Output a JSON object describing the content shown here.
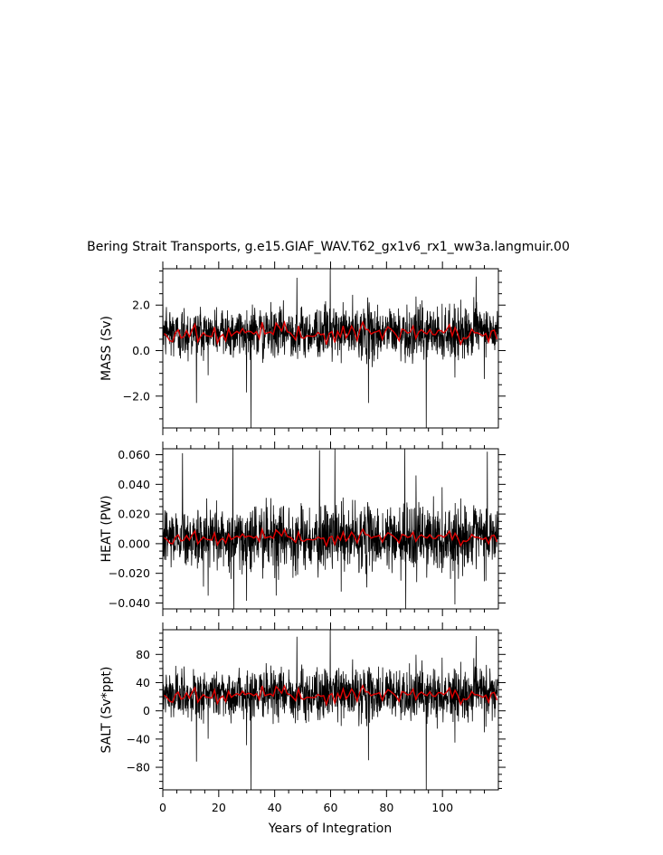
{
  "chart_data": {
    "title": "Bering Strait Transports, g.e15.GIAF_WAV.T62_gx1v6_rx1_ww3a.langmuir.00",
    "xlabel": "Years of Integration",
    "xlim": [
      0,
      120
    ],
    "xticks": [
      0,
      20,
      40,
      60,
      80,
      100
    ],
    "panels": [
      {
        "id": "mass",
        "type": "line",
        "ylabel": "MASS (Sv)",
        "ylim": [
          -3.4,
          3.6
        ],
        "yticks": [
          -2.0,
          0.0,
          2.0
        ],
        "ytick_labels": [
          "−2.0",
          "0.0",
          "2.0"
        ],
        "monthly_mean": 0.8,
        "monthly_std": 0.62,
        "annual_mean": 0.75,
        "annual_amp": 0.22,
        "spikes": [
          {
            "x": 31.5,
            "y": -3.4
          },
          {
            "x": 59.8,
            "y": 3.6
          },
          {
            "x": 94.2,
            "y": -3.4
          },
          {
            "x": 47.9,
            "y": 3.2
          },
          {
            "x": 112.0,
            "y": 3.25
          },
          {
            "x": 12.0,
            "y": -2.3
          },
          {
            "x": 73.5,
            "y": -2.3
          }
        ],
        "series": [
          {
            "name": "",
            "sampling": "monthly",
            "color": "#000000"
          },
          {
            "name": "",
            "sampling": "annual mean",
            "color": "#e00000"
          }
        ]
      },
      {
        "id": "heat",
        "type": "line",
        "ylabel": "HEAT (PW)",
        "ylim": [
          -0.044,
          0.064
        ],
        "yticks": [
          -0.04,
          -0.02,
          0.0,
          0.02,
          0.04,
          0.06
        ],
        "ytick_labels": [
          "−0.040",
          "−0.020",
          "0.000",
          "0.020",
          "0.040",
          "0.060"
        ],
        "monthly_mean": 0.004,
        "monthly_std": 0.012,
        "annual_mean": 0.004,
        "annual_amp": 0.0025,
        "spikes": [
          {
            "x": 25.0,
            "y": 0.064
          },
          {
            "x": 25.3,
            "y": -0.044
          },
          {
            "x": 86.5,
            "y": 0.064
          },
          {
            "x": 86.8,
            "y": -0.044
          },
          {
            "x": 40.5,
            "y": -0.035
          },
          {
            "x": 7.0,
            "y": 0.061
          },
          {
            "x": 56.0,
            "y": 0.063
          },
          {
            "x": 61.5,
            "y": 0.064
          },
          {
            "x": 116.0,
            "y": 0.062
          }
        ],
        "series": [
          {
            "name": "",
            "sampling": "monthly",
            "color": "#000000"
          },
          {
            "name": "",
            "sampling": "annual mean",
            "color": "#e00000"
          }
        ]
      },
      {
        "id": "salt",
        "type": "line",
        "ylabel": "SALT (Sv*ppt)",
        "ylim": [
          -112,
          115
        ],
        "yticks": [
          -80,
          -40,
          0,
          40,
          80
        ],
        "ytick_labels": [
          "−80",
          "−40",
          "0",
          "40",
          "80"
        ],
        "monthly_mean": 24,
        "monthly_std": 20,
        "annual_mean": 22,
        "annual_amp": 6,
        "spikes": [
          {
            "x": 31.5,
            "y": -112
          },
          {
            "x": 59.8,
            "y": 115
          },
          {
            "x": 94.2,
            "y": -112
          },
          {
            "x": 47.9,
            "y": 105
          },
          {
            "x": 112.0,
            "y": 106
          },
          {
            "x": 12.0,
            "y": -72
          },
          {
            "x": 73.5,
            "y": -70
          }
        ],
        "series": [
          {
            "name": "",
            "sampling": "monthly",
            "color": "#000000"
          },
          {
            "name": "",
            "sampling": "annual mean",
            "color": "#e00000"
          }
        ]
      }
    ]
  }
}
